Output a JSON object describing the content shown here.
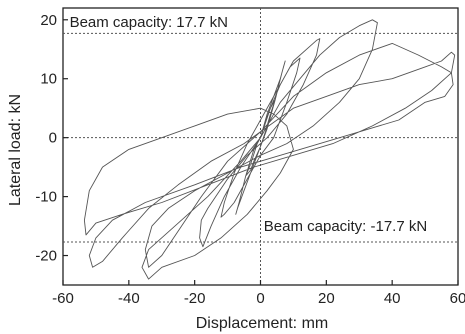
{
  "chart_data": {
    "type": "line",
    "xlabel": "Displacement: mm",
    "ylabel": "Lateral load: kN",
    "xlim": [
      -60,
      60
    ],
    "ylim": [
      -25,
      22
    ],
    "xticks": [
      -60,
      -40,
      -20,
      0,
      20,
      40,
      60
    ],
    "yticks": [
      -20,
      -10,
      0,
      10,
      20
    ],
    "x_tick_labels": [
      "-60",
      "-40",
      "-20",
      "0",
      "20",
      "40",
      "60"
    ],
    "y_tick_labels": [
      "-20",
      "-10",
      "0",
      "10",
      "20"
    ],
    "grid": false,
    "line_color": "#555555",
    "reference_lines": [
      {
        "orientation": "horizontal",
        "value": 17.7,
        "style": "dotted"
      },
      {
        "orientation": "horizontal",
        "value": -17.7,
        "style": "dotted"
      },
      {
        "orientation": "horizontal",
        "value": 0,
        "style": "dotted"
      },
      {
        "orientation": "vertical",
        "value": 0,
        "style": "dotted"
      }
    ],
    "annotations": [
      {
        "text": "Beam capacity: 17.7 kN",
        "x": -58,
        "y": 18.8
      },
      {
        "text": "Beam capacity: -17.7 kN",
        "x": 1,
        "y": -15.8
      }
    ],
    "series": [
      {
        "values": [
          [
            0,
            0
          ],
          [
            2,
            3.5
          ],
          [
            3,
            5
          ],
          [
            4.5,
            6.5
          ],
          [
            3,
            4
          ],
          [
            1.5,
            1
          ],
          [
            0,
            -1.5
          ],
          [
            -2,
            -4
          ],
          [
            -3,
            -5.5
          ],
          [
            -4.5,
            -6.5
          ],
          [
            -3,
            -4.5
          ],
          [
            -1,
            -1
          ],
          [
            0,
            0
          ],
          [
            2,
            4
          ],
          [
            4,
            7
          ],
          [
            6,
            10
          ],
          [
            7,
            12
          ],
          [
            7.5,
            13
          ],
          [
            6.5,
            11
          ],
          [
            4.5,
            6.5
          ],
          [
            2,
            1.5
          ],
          [
            -1,
            -3
          ],
          [
            -3,
            -6
          ],
          [
            -5,
            -9
          ],
          [
            -7,
            -12
          ],
          [
            -7.5,
            -13
          ],
          [
            -6.5,
            -11
          ],
          [
            -4.5,
            -6.5
          ],
          [
            -2,
            -2
          ],
          [
            0,
            0
          ],
          [
            3,
            5
          ],
          [
            6,
            9
          ],
          [
            9,
            12
          ],
          [
            11,
            13
          ],
          [
            12,
            13.5
          ],
          [
            11,
            11
          ],
          [
            8,
            6
          ],
          [
            4,
            0
          ],
          [
            0,
            -3
          ],
          [
            -4,
            -7
          ],
          [
            -8,
            -11
          ],
          [
            -11,
            -13
          ],
          [
            -12,
            -13.5
          ],
          [
            -11,
            -11
          ],
          [
            -8,
            -6
          ],
          [
            -4,
            -1
          ],
          [
            0,
            3
          ],
          [
            5,
            8
          ],
          [
            10,
            13
          ],
          [
            15,
            15.5
          ],
          [
            17,
            16.5
          ],
          [
            18,
            16.8
          ],
          [
            17,
            14
          ],
          [
            13,
            9
          ],
          [
            8,
            4
          ],
          [
            2,
            0
          ],
          [
            -4,
            -3
          ],
          [
            -10,
            -7
          ],
          [
            -16,
            -12
          ],
          [
            -18,
            -14
          ],
          [
            -18.5,
            -17
          ],
          [
            -17.5,
            -18.5
          ],
          [
            -15,
            -15
          ],
          [
            -11,
            -10
          ],
          [
            -6,
            -5
          ],
          [
            0,
            0
          ],
          [
            6,
            6
          ],
          [
            12,
            10
          ],
          [
            18,
            14
          ],
          [
            24,
            17
          ],
          [
            30,
            19
          ],
          [
            34,
            20
          ],
          [
            35.5,
            19.5
          ],
          [
            34,
            15
          ],
          [
            30,
            10
          ],
          [
            24,
            6
          ],
          [
            16,
            2
          ],
          [
            8,
            -1
          ],
          [
            0,
            -3
          ],
          [
            -10,
            -6
          ],
          [
            -20,
            -9
          ],
          [
            -28,
            -12
          ],
          [
            -33,
            -15
          ],
          [
            -35,
            -19
          ],
          [
            -34,
            -22
          ],
          [
            -30,
            -20
          ],
          [
            -24,
            -15
          ],
          [
            -18,
            -10
          ],
          [
            -10,
            -4
          ],
          [
            0,
            1
          ],
          [
            5,
            4
          ],
          [
            10,
            7
          ],
          [
            20,
            11
          ],
          [
            30,
            14
          ],
          [
            40,
            16
          ],
          [
            48,
            14
          ],
          [
            55,
            12
          ],
          [
            58,
            11
          ],
          [
            58.5,
            9
          ],
          [
            56,
            7
          ],
          [
            50,
            6
          ],
          [
            42,
            3
          ],
          [
            30,
            1
          ],
          [
            18,
            -1
          ],
          [
            6,
            -3
          ],
          [
            -6,
            -5
          ],
          [
            -20,
            -8
          ],
          [
            -35,
            -11
          ],
          [
            -45,
            -14
          ],
          [
            -50,
            -17
          ],
          [
            -52,
            -20
          ],
          [
            -51,
            -22
          ],
          [
            -48,
            -21
          ],
          [
            -42,
            -17
          ],
          [
            -34,
            -12
          ],
          [
            -25,
            -8
          ],
          [
            -15,
            -4
          ],
          [
            -5,
            -1
          ],
          [
            0,
            1
          ],
          [
            5,
            3
          ],
          [
            10,
            5
          ],
          [
            20,
            7
          ],
          [
            30,
            9
          ],
          [
            40,
            10
          ],
          [
            50,
            12
          ],
          [
            55,
            13
          ],
          [
            58,
            14.5
          ],
          [
            59,
            14
          ],
          [
            58,
            11
          ],
          [
            52,
            8
          ],
          [
            44,
            5
          ],
          [
            34,
            2
          ],
          [
            22,
            -1
          ],
          [
            10,
            -3
          ],
          [
            -2,
            -5
          ],
          [
            -16,
            -8
          ],
          [
            -30,
            -11
          ],
          [
            -42,
            -13
          ],
          [
            -50,
            -14.5
          ],
          [
            -53,
            -16.5
          ],
          [
            -53.5,
            -14
          ],
          [
            -52,
            -9
          ],
          [
            -48,
            -5
          ],
          [
            -40,
            -2
          ],
          [
            -30,
            0
          ],
          [
            -20,
            2
          ],
          [
            -10,
            4
          ],
          [
            0,
            5
          ],
          [
            4,
            4
          ],
          [
            8,
            2
          ],
          [
            10,
            -2
          ],
          [
            6,
            -6
          ],
          [
            2,
            -9
          ],
          [
            -4,
            -13
          ],
          [
            -12,
            -17
          ],
          [
            -20,
            -20
          ],
          [
            -30,
            -22
          ],
          [
            -34,
            -24
          ],
          [
            -36,
            -22
          ],
          [
            -34,
            -19
          ],
          [
            -26,
            -15
          ],
          [
            -16,
            -10
          ],
          [
            -6,
            -4
          ],
          [
            0,
            0
          ]
        ]
      }
    ]
  }
}
